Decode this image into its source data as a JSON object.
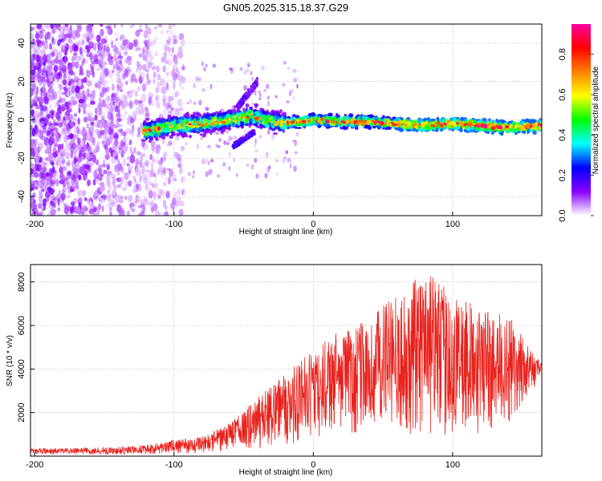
{
  "title": "GN05.2025.315.18.37.G29",
  "chart_data": [
    {
      "type": "heatmap",
      "title": "GN05.2025.315.18.37.G29",
      "xlabel": "Height of straight line (km)",
      "ylabel": "Frequency (Hz)",
      "xlim": [
        -203,
        164
      ],
      "ylim": [
        -50,
        50
      ],
      "x_ticks": [
        -200,
        -100,
        0,
        100
      ],
      "y_ticks": [
        -40,
        -20,
        0,
        20,
        40
      ],
      "grid": true,
      "colorbar": {
        "label": "Normalized spectral amplitude",
        "range": [
          0,
          0.95
        ],
        "ticks": [
          0.0,
          0.2,
          0.4,
          0.6,
          0.8
        ],
        "colormap": [
          "#ffffff",
          "#8a00ff",
          "#0000ff",
          "#00ffff",
          "#00ff00",
          "#ffff00",
          "#ff8000",
          "#ff0000",
          "#ff00a0"
        ]
      },
      "ridge": {
        "x": [
          -120,
          -100,
          -80,
          -60,
          -45,
          -35,
          -20,
          -10,
          0,
          20,
          40,
          60,
          80,
          100,
          120,
          140,
          164
        ],
        "y": [
          -6,
          -3,
          -2,
          0,
          2,
          0,
          -2,
          -1,
          0,
          -1,
          -1,
          -2,
          -3,
          -2,
          -3,
          -4,
          -3
        ]
      }
    },
    {
      "type": "line",
      "xlabel": "Height of straight line (km)",
      "ylabel": "SNR (10 * v/v)",
      "xlim": [
        -203,
        164
      ],
      "ylim": [
        0,
        8800
      ],
      "x_ticks": [
        -200,
        -100,
        0,
        100
      ],
      "y_ticks": [
        2000,
        4000,
        6000,
        8000
      ],
      "grid": true,
      "color": "#e8231e",
      "envelope": {
        "x": [
          -203,
          -150,
          -120,
          -100,
          -80,
          -60,
          -40,
          -20,
          0,
          20,
          40,
          60,
          80,
          100,
          120,
          140,
          164
        ],
        "upper": [
          350,
          400,
          500,
          750,
          900,
          1500,
          2700,
          3800,
          5000,
          5800,
          6300,
          7500,
          8500,
          7500,
          6800,
          6500,
          4200
        ],
        "lower": [
          80,
          80,
          80,
          100,
          150,
          200,
          300,
          500,
          700,
          900,
          1000,
          1000,
          1000,
          900,
          800,
          1500,
          3600
        ]
      }
    }
  ]
}
